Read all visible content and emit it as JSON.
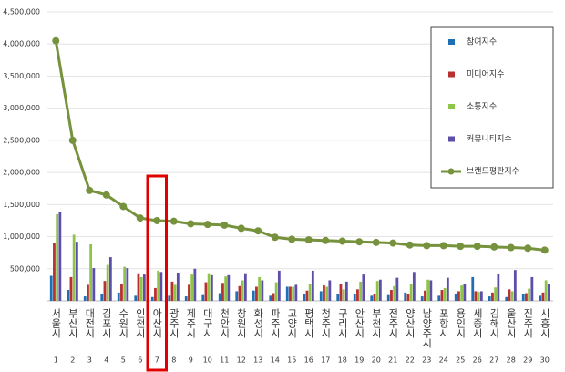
{
  "chart_data": {
    "type": "bar-line",
    "categories": [
      "서울시",
      "부산시",
      "대전시",
      "김포시",
      "수원시",
      "인천시",
      "아산시",
      "광주시",
      "제주시",
      "대구시",
      "천안시",
      "창원시",
      "화성시",
      "파주시",
      "고양시",
      "평택시",
      "청주시",
      "구리시",
      "안산시",
      "부천시",
      "전주시",
      "양산시",
      "남양주시",
      "포항시",
      "용인시",
      "세종시",
      "김해시",
      "울산시",
      "진주시",
      "시흥시"
    ],
    "ranks": [
      "1",
      "2",
      "3",
      "4",
      "5",
      "6",
      "7",
      "8",
      "9",
      "10",
      "11",
      "12",
      "13",
      "14",
      "15",
      "16",
      "17",
      "18",
      "19",
      "20",
      "21",
      "22",
      "23",
      "24",
      "25",
      "26",
      "27",
      "28",
      "29",
      "30"
    ],
    "series": [
      {
        "name": "참여지수",
        "type": "bar",
        "color": "#1f6fb4",
        "values": [
          390000,
          170000,
          70000,
          100000,
          130000,
          80000,
          60000,
          80000,
          70000,
          90000,
          120000,
          150000,
          160000,
          80000,
          220000,
          100000,
          150000,
          110000,
          100000,
          80000,
          90000,
          130000,
          70000,
          80000,
          110000,
          370000,
          70000,
          60000,
          100000,
          80000
        ]
      },
      {
        "name": "미디어지수",
        "type": "bar",
        "color": "#b8312f",
        "values": [
          900000,
          370000,
          250000,
          310000,
          270000,
          430000,
          200000,
          300000,
          250000,
          290000,
          280000,
          230000,
          220000,
          120000,
          220000,
          160000,
          240000,
          270000,
          180000,
          110000,
          170000,
          110000,
          160000,
          170000,
          150000,
          150000,
          130000,
          180000,
          120000,
          130000
        ]
      },
      {
        "name": "소통지수",
        "type": "bar",
        "color": "#8fc44a",
        "values": [
          1350000,
          1030000,
          880000,
          560000,
          530000,
          370000,
          470000,
          250000,
          410000,
          430000,
          380000,
          320000,
          370000,
          290000,
          220000,
          260000,
          220000,
          180000,
          300000,
          310000,
          230000,
          270000,
          330000,
          200000,
          240000,
          140000,
          210000,
          150000,
          190000,
          320000
        ]
      },
      {
        "name": "커뮤니티지수",
        "type": "bar",
        "color": "#5b4fa8",
        "values": [
          1380000,
          920000,
          510000,
          680000,
          510000,
          410000,
          450000,
          440000,
          500000,
          400000,
          400000,
          430000,
          320000,
          470000,
          250000,
          470000,
          320000,
          300000,
          410000,
          330000,
          360000,
          450000,
          320000,
          360000,
          270000,
          150000,
          420000,
          480000,
          370000,
          270000
        ]
      },
      {
        "name": "브랜드평판지수",
        "type": "line",
        "color": "#76923c",
        "values": [
          4050000,
          2500000,
          1720000,
          1650000,
          1470000,
          1290000,
          1250000,
          1240000,
          1200000,
          1190000,
          1180000,
          1130000,
          1090000,
          990000,
          960000,
          950000,
          940000,
          930000,
          920000,
          910000,
          900000,
          870000,
          860000,
          860000,
          850000,
          850000,
          840000,
          830000,
          820000,
          790000
        ]
      }
    ],
    "ylim": [
      0,
      4500000
    ],
    "yticks": [
      {
        "value": 500000,
        "label": "500,000"
      },
      {
        "value": 1000000,
        "label": "1,000,000"
      },
      {
        "value": 1500000,
        "label": "1,500,000"
      },
      {
        "value": 2000000,
        "label": "2,000,000"
      },
      {
        "value": 2500000,
        "label": "2,500,000"
      },
      {
        "value": 3000000,
        "label": "3,000,000"
      },
      {
        "value": 3500000,
        "label": "3,500,000"
      },
      {
        "value": 4000000,
        "label": "4,000,000"
      },
      {
        "value": 4500000,
        "label": "4,500,000"
      }
    ],
    "grid": true,
    "legend": "right",
    "highlight": {
      "category": 6,
      "color": "#e00000"
    }
  }
}
